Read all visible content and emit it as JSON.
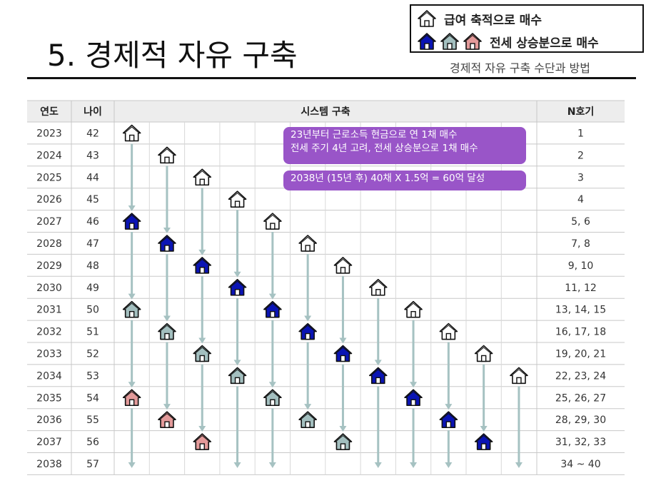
{
  "title": "5. 경제적 자유 구축",
  "subtitle": "경제적 자유 구축 수단과 방법",
  "legend": [
    {
      "text": "급여 축적으로 매수",
      "icons": [
        "house-outline-icon"
      ]
    },
    {
      "text": "전세 상승분으로 매수",
      "icons": [
        "house-blue-icon",
        "house-gray-icon",
        "house-pink-icon"
      ]
    }
  ],
  "colors": {
    "outline": "#ffffff",
    "blue": "#0a14b4",
    "gray": "#a3bfbf",
    "pink": "#e39a9a",
    "arrow": "#a6c2c2",
    "note": "#9955c8",
    "header_bg": "#ededed"
  },
  "table": {
    "headers": [
      "연도",
      "나이",
      "시스템 구축",
      "N호기"
    ],
    "rows": [
      {
        "year": "2023",
        "age": "42",
        "n": "1"
      },
      {
        "year": "2024",
        "age": "43",
        "n": "2"
      },
      {
        "year": "2025",
        "age": "44",
        "n": "3"
      },
      {
        "year": "2026",
        "age": "45",
        "n": "4"
      },
      {
        "year": "2027",
        "age": "46",
        "n": "5, 6"
      },
      {
        "year": "2028",
        "age": "47",
        "n": "7, 8"
      },
      {
        "year": "2029",
        "age": "48",
        "n": "9, 10"
      },
      {
        "year": "2030",
        "age": "49",
        "n": "11, 12"
      },
      {
        "year": "2031",
        "age": "50",
        "n": "13, 14, 15"
      },
      {
        "year": "2032",
        "age": "51",
        "n": "16, 17, 18"
      },
      {
        "year": "2033",
        "age": "52",
        "n": "19, 20, 21"
      },
      {
        "year": "2034",
        "age": "53",
        "n": "22, 23, 24"
      },
      {
        "year": "2035",
        "age": "54",
        "n": "25, 26, 27"
      },
      {
        "year": "2036",
        "age": "55",
        "n": "28, 29, 30"
      },
      {
        "year": "2037",
        "age": "56",
        "n": "31, 32, 33"
      },
      {
        "year": "2038",
        "age": "57",
        "n": "34 ~ 40"
      }
    ]
  },
  "houses": [
    {
      "col": 0,
      "row": 0,
      "color": "outline"
    },
    {
      "col": 1,
      "row": 1,
      "color": "outline"
    },
    {
      "col": 2,
      "row": 2,
      "color": "outline"
    },
    {
      "col": 3,
      "row": 3,
      "color": "outline"
    },
    {
      "col": 0,
      "row": 4,
      "color": "blue"
    },
    {
      "col": 4,
      "row": 4,
      "color": "outline"
    },
    {
      "col": 1,
      "row": 5,
      "color": "blue"
    },
    {
      "col": 5,
      "row": 5,
      "color": "outline"
    },
    {
      "col": 2,
      "row": 6,
      "color": "blue"
    },
    {
      "col": 6,
      "row": 6,
      "color": "outline"
    },
    {
      "col": 3,
      "row": 7,
      "color": "blue"
    },
    {
      "col": 7,
      "row": 7,
      "color": "outline"
    },
    {
      "col": 0,
      "row": 8,
      "color": "gray"
    },
    {
      "col": 4,
      "row": 8,
      "color": "blue"
    },
    {
      "col": 8,
      "row": 8,
      "color": "outline"
    },
    {
      "col": 1,
      "row": 9,
      "color": "gray"
    },
    {
      "col": 5,
      "row": 9,
      "color": "blue"
    },
    {
      "col": 9,
      "row": 9,
      "color": "outline"
    },
    {
      "col": 2,
      "row": 10,
      "color": "gray"
    },
    {
      "col": 6,
      "row": 10,
      "color": "blue"
    },
    {
      "col": 10,
      "row": 10,
      "color": "outline"
    },
    {
      "col": 3,
      "row": 11,
      "color": "gray"
    },
    {
      "col": 7,
      "row": 11,
      "color": "blue"
    },
    {
      "col": 11,
      "row": 11,
      "color": "outline"
    },
    {
      "col": 0,
      "row": 12,
      "color": "pink"
    },
    {
      "col": 4,
      "row": 12,
      "color": "gray"
    },
    {
      "col": 8,
      "row": 12,
      "color": "blue"
    },
    {
      "col": 1,
      "row": 13,
      "color": "pink"
    },
    {
      "col": 5,
      "row": 13,
      "color": "gray"
    },
    {
      "col": 9,
      "row": 13,
      "color": "blue"
    },
    {
      "col": 2,
      "row": 14,
      "color": "pink"
    },
    {
      "col": 6,
      "row": 14,
      "color": "gray"
    },
    {
      "col": 10,
      "row": 14,
      "color": "blue"
    }
  ],
  "arrows": [
    {
      "col": 0,
      "from": 0,
      "to": 4
    },
    {
      "col": 0,
      "from": 4,
      "to": 8
    },
    {
      "col": 0,
      "from": 8,
      "to": 12
    },
    {
      "col": 0,
      "from": 12,
      "to": 15
    },
    {
      "col": 1,
      "from": 1,
      "to": 5
    },
    {
      "col": 1,
      "from": 5,
      "to": 9
    },
    {
      "col": 1,
      "from": 9,
      "to": 13
    },
    {
      "col": 2,
      "from": 2,
      "to": 6
    },
    {
      "col": 2,
      "from": 6,
      "to": 10
    },
    {
      "col": 2,
      "from": 10,
      "to": 14
    },
    {
      "col": 3,
      "from": 3,
      "to": 7
    },
    {
      "col": 3,
      "from": 7,
      "to": 11
    },
    {
      "col": 3,
      "from": 11,
      "to": 15
    },
    {
      "col": 4,
      "from": 4,
      "to": 8
    },
    {
      "col": 4,
      "from": 8,
      "to": 12
    },
    {
      "col": 4,
      "from": 12,
      "to": 15
    },
    {
      "col": 5,
      "from": 5,
      "to": 9
    },
    {
      "col": 5,
      "from": 9,
      "to": 13
    },
    {
      "col": 6,
      "from": 6,
      "to": 10
    },
    {
      "col": 6,
      "from": 10,
      "to": 14
    },
    {
      "col": 7,
      "from": 7,
      "to": 11
    },
    {
      "col": 7,
      "from": 11,
      "to": 15
    },
    {
      "col": 8,
      "from": 8,
      "to": 12
    },
    {
      "col": 8,
      "from": 12,
      "to": 15
    },
    {
      "col": 9,
      "from": 9,
      "to": 13
    },
    {
      "col": 9,
      "from": 13,
      "to": 15
    },
    {
      "col": 10,
      "from": 10,
      "to": 14
    },
    {
      "col": 11,
      "from": 11,
      "to": 15
    }
  ],
  "notes": [
    {
      "lines": [
        "23년부터 근로소득 현금으로 연 1채 매수",
        "전세 주기 4년 고려, 전세 상승분으로 1채 매수"
      ]
    },
    {
      "lines": [
        "2038년 (15년  후) 40채 X 1.5억 = 60억 달성"
      ]
    }
  ]
}
